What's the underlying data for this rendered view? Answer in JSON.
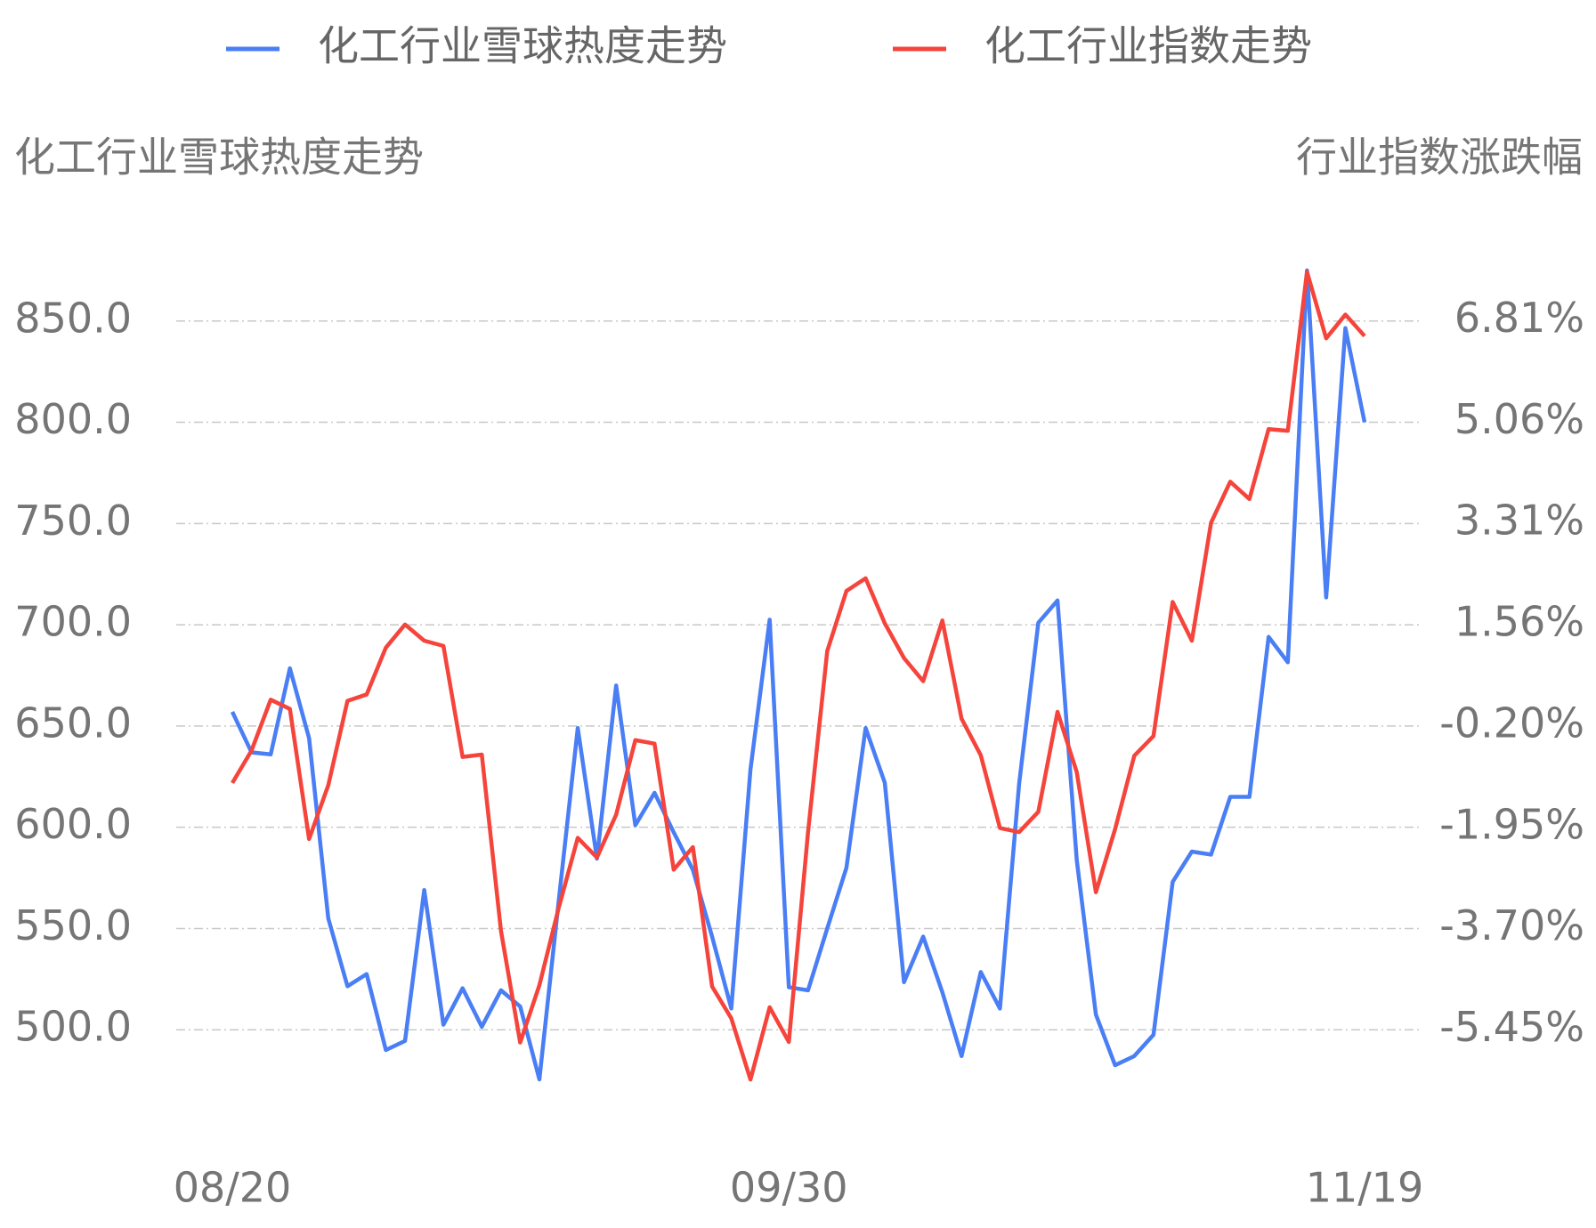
{
  "chart_data": {
    "type": "line",
    "y_title": "化工行业雪球热度走势",
    "y2_title": "行业指数涨跌幅",
    "categories": [
      "08/20",
      null,
      null,
      null,
      null,
      null,
      null,
      null,
      null,
      null,
      null,
      null,
      null,
      null,
      null,
      null,
      null,
      null,
      null,
      null,
      null,
      null,
      null,
      null,
      null,
      null,
      null,
      null,
      null,
      "09/30",
      null,
      null,
      null,
      null,
      null,
      null,
      null,
      null,
      null,
      null,
      null,
      null,
      null,
      null,
      null,
      null,
      null,
      null,
      null,
      null,
      null,
      null,
      null,
      null,
      null,
      null,
      null,
      null,
      null,
      "11/19"
    ],
    "series": [
      {
        "name": "化工行业雪球热度走势",
        "color": "#4a7ef5",
        "values": [
          657,
          637,
          636,
          678.5,
          644,
          555,
          521.5,
          527.5,
          490,
          494.5,
          569,
          502.5,
          520.5,
          501.5,
          519.5,
          511.5,
          475.5,
          563,
          649,
          584.5,
          670,
          601,
          617,
          597.5,
          579,
          546,
          510.5,
          628.5,
          702.5,
          521,
          519.5,
          550,
          580,
          649,
          622,
          523.5,
          546,
          518.5,
          487,
          528.5,
          510.5,
          621.5,
          701,
          712,
          584,
          507.5,
          482.5,
          487,
          497.5,
          573,
          588,
          586.5,
          615,
          615,
          694,
          681.5,
          875,
          713.5,
          846.5,
          800
        ]
      },
      {
        "name": "化工行业指数走势",
        "color": "#f5443b",
        "axis": "y2",
        "values": [
          -1.18,
          -0.62,
          0.26,
          0.1,
          -2.15,
          -1.22,
          0.24,
          0.35,
          1.16,
          1.56,
          1.28,
          1.19,
          -0.73,
          -0.69,
          -3.74,
          -5.67,
          -4.68,
          -3.35,
          -2.13,
          -2.47,
          -1.73,
          -0.44,
          -0.5,
          -2.68,
          -2.29,
          -4.7,
          -5.25,
          -6.31,
          -5.06,
          -5.66,
          -2.03,
          1.1,
          2.14,
          2.36,
          1.58,
          0.98,
          0.58,
          1.63,
          -0.07,
          -0.7,
          -1.96,
          -2.03,
          -1.68,
          0.05,
          -0.99,
          -3.07,
          -1.98,
          -0.71,
          -0.37,
          1.95,
          1.28,
          3.32,
          4.03,
          3.73,
          4.94,
          4.91,
          7.66,
          6.51,
          6.92,
          6.55
        ]
      }
    ],
    "ylim": [
      450,
      900
    ],
    "yticks": [
      {
        "value": 500,
        "label": "500.0"
      },
      {
        "value": 550,
        "label": "550.0"
      },
      {
        "value": 600,
        "label": "600.0"
      },
      {
        "value": 650,
        "label": "650.0"
      },
      {
        "value": 700,
        "label": "700.0"
      },
      {
        "value": 750,
        "label": "750.0"
      },
      {
        "value": 800,
        "label": "800.0"
      },
      {
        "value": 850,
        "label": "850.0"
      }
    ],
    "y2lim": [
      -7.2,
      8.56
    ],
    "y2ticks": [
      {
        "value": -5.45,
        "label": "-5.45%"
      },
      {
        "value": -3.7,
        "label": "-3.70%"
      },
      {
        "value": -1.95,
        "label": "-1.95%"
      },
      {
        "value": -0.2,
        "label": "-0.20%"
      },
      {
        "value": 1.56,
        "label": "1.56%"
      },
      {
        "value": 3.31,
        "label": "3.31%"
      },
      {
        "value": 5.06,
        "label": "5.06%"
      },
      {
        "value": 6.81,
        "label": "6.81%"
      }
    ],
    "grid": true
  }
}
